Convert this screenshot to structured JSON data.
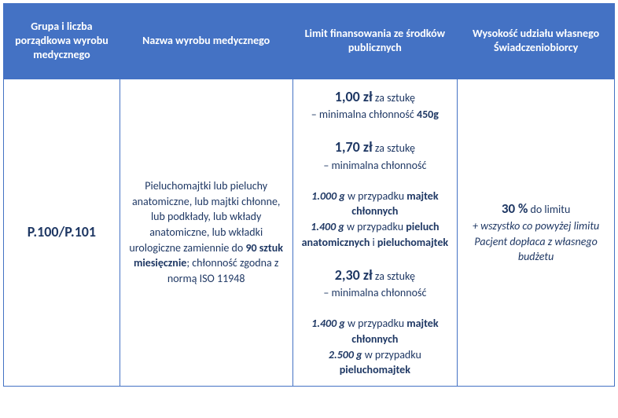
{
  "headers": {
    "col1": "Grupa i liczba porządkowa wyrobu medycznego",
    "col2": "Nazwa wyrobu medycznego",
    "col3": "Limit finansowania ze środków publicznych",
    "col4": "Wysokość udziału własnego Świadczeniobiorcy"
  },
  "body": {
    "group_code": "P.100/P.101",
    "product_name_pre": "Pieluchomajtki lub pieluchy anatomiczne, lub majtki chłonne, lub podkłady, lub wkłady anatomiczne, lub wkładki urologiczne zamiennie do ",
    "product_name_bold": "90 sztuk miesięcznie",
    "product_name_post": "; chłonność zgodna z normą ISO 11948",
    "limits": {
      "r1": {
        "price": "1,00 zł",
        "per": " za sztukę",
        "line2_pre": "– minimalna chłonność ",
        "line2_bold": "450g"
      },
      "r2": {
        "price": "1,70 zł",
        "per": " za sztukę",
        "line2": "– minimalna chłonność",
        "d1_g": "1.000 g",
        "d1_txt": " w przypadku ",
        "d1_bold": "majtek chłonnych",
        "d2_g": "1.400 g",
        "d2_txt": " w przypadku ",
        "d2_bold1": "pieluch anatomicznych",
        "d2_and": " i ",
        "d2_bold2": "pieluchomajtek"
      },
      "r3": {
        "price": "2,30 zł",
        "per": " za sztukę",
        "line2": "– minimalna chłonność",
        "d1_g": "1.400 g",
        "d1_txt": " w przypadku ",
        "d1_bold": "majtek chłonnych",
        "d2_g": "2.500 g",
        "d2_txt": " w przypadku ",
        "d2_bold": "pieluchomajtek"
      }
    },
    "share": {
      "percent": "30 %",
      "to_limit": " do limitu",
      "note": "+ wszystko co powyżej limitu Pacjent dopłaca z własnego budżetu"
    }
  },
  "style": {
    "header_bg": "#4472c4",
    "header_fg": "#ffffff",
    "body_fg": "#1f3864",
    "border": "#4472c4"
  }
}
